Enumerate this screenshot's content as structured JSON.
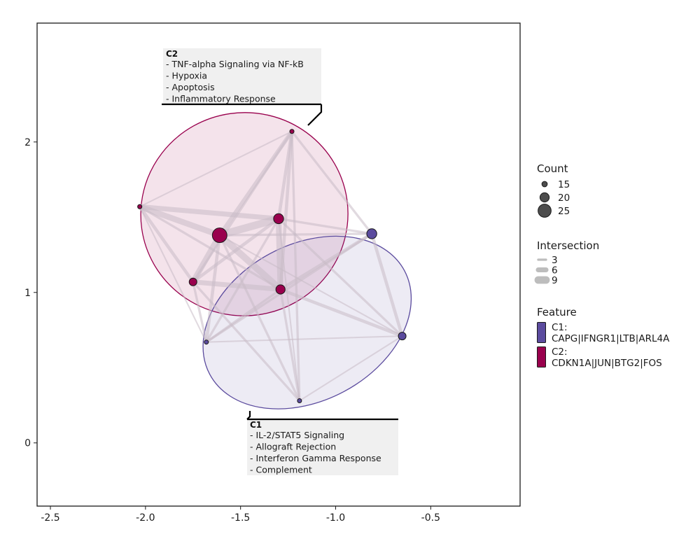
{
  "chart_data": {
    "type": "network",
    "x_axis": {
      "range": [
        -2.57,
        -0.03
      ],
      "ticks": [
        -2.5,
        -2.0,
        -1.5,
        -1.0,
        -0.5
      ],
      "tick_labels": [
        "-2.5",
        "-2.0",
        "-1.5",
        "-1.0",
        "-0.5"
      ]
    },
    "y_axis": {
      "range": [
        -0.42,
        2.79
      ],
      "ticks": [
        0,
        1,
        2
      ],
      "tick_labels": [
        "0",
        "1",
        "2"
      ]
    },
    "colors": {
      "C1": "#5b4b9e",
      "C2": "#99004d",
      "edge": "#c8bcc6",
      "ann_bg": "#f0f0f0"
    },
    "nodes": [
      {
        "id": "a",
        "x": -1.23,
        "y": 2.07,
        "size": 12,
        "cluster": "C2"
      },
      {
        "id": "b",
        "x": -2.03,
        "y": 1.57,
        "size": 13,
        "cluster": "C2"
      },
      {
        "id": "c",
        "x": -1.3,
        "y": 1.49,
        "size": 21,
        "cluster": "C2"
      },
      {
        "id": "d",
        "x": -1.61,
        "y": 1.38,
        "size": 27,
        "cluster": "C2"
      },
      {
        "id": "e",
        "x": -1.75,
        "y": 1.07,
        "size": 18,
        "cluster": "C2"
      },
      {
        "id": "f",
        "x": -1.29,
        "y": 1.02,
        "size": 20,
        "cluster": "C2"
      },
      {
        "id": "g",
        "x": -0.81,
        "y": 1.39,
        "size": 21,
        "cluster": "C1"
      },
      {
        "id": "h",
        "x": -0.65,
        "y": 0.71,
        "size": 18,
        "cluster": "C1"
      },
      {
        "id": "i",
        "x": -1.68,
        "y": 0.67,
        "size": 12,
        "cluster": "C1"
      },
      {
        "id": "j",
        "x": -1.19,
        "y": 0.28,
        "size": 12,
        "cluster": "C1"
      }
    ],
    "edges": [
      {
        "s": "d",
        "t": "c",
        "w": 9
      },
      {
        "s": "d",
        "t": "f",
        "w": 8
      },
      {
        "s": "d",
        "t": "e",
        "w": 7
      },
      {
        "s": "b",
        "t": "d",
        "w": 7
      },
      {
        "s": "b",
        "t": "c",
        "w": 6
      },
      {
        "s": "c",
        "t": "f",
        "w": 7
      },
      {
        "s": "e",
        "t": "f",
        "w": 6
      },
      {
        "s": "a",
        "t": "d",
        "w": 5
      },
      {
        "s": "a",
        "t": "c",
        "w": 4
      },
      {
        "s": "a",
        "t": "f",
        "w": 4
      },
      {
        "s": "a",
        "t": "e",
        "w": 3
      },
      {
        "s": "b",
        "t": "e",
        "w": 4
      },
      {
        "s": "b",
        "t": "f",
        "w": 3
      },
      {
        "s": "e",
        "t": "c",
        "w": 4
      },
      {
        "s": "a",
        "t": "g",
        "w": 3
      },
      {
        "s": "b",
        "t": "a",
        "w": 2
      },
      {
        "s": "d",
        "t": "g",
        "w": 3
      },
      {
        "s": "c",
        "t": "g",
        "w": 3
      },
      {
        "s": "f",
        "t": "g",
        "w": 4
      },
      {
        "s": "f",
        "t": "h",
        "w": 4
      },
      {
        "s": "c",
        "t": "h",
        "w": 3
      },
      {
        "s": "d",
        "t": "h",
        "w": 2
      },
      {
        "s": "g",
        "t": "h",
        "w": 4
      },
      {
        "s": "g",
        "t": "i",
        "w": 3
      },
      {
        "s": "i",
        "t": "h",
        "w": 2
      },
      {
        "s": "i",
        "t": "d",
        "w": 4
      },
      {
        "s": "i",
        "t": "c",
        "w": 3
      },
      {
        "s": "i",
        "t": "f",
        "w": 3
      },
      {
        "s": "i",
        "t": "b",
        "w": 2
      },
      {
        "s": "j",
        "t": "a",
        "w": 3
      },
      {
        "s": "j",
        "t": "f",
        "w": 3
      },
      {
        "s": "j",
        "t": "d",
        "w": 3
      },
      {
        "s": "j",
        "t": "e",
        "w": 3
      },
      {
        "s": "j",
        "t": "c",
        "w": 2
      },
      {
        "s": "j",
        "t": "h",
        "w": 2
      },
      {
        "s": "e",
        "t": "i",
        "w": 3
      }
    ],
    "clusters": [
      {
        "id": "C2",
        "cx": -1.48,
        "cy": 1.52,
        "rx": 0.545,
        "ry": 0.675,
        "rotate": -8
      },
      {
        "id": "C1",
        "cx": -1.15,
        "cy": 0.8,
        "rx": 0.58,
        "ry": 0.52,
        "rotate": -28
      }
    ],
    "annotations": [
      {
        "id": "C2",
        "title": "C2",
        "lines": [
          "- TNF-alpha Signaling via NF-kB",
          "- Hypoxia",
          "- Apoptosis",
          "- Inflammatory Response"
        ]
      },
      {
        "id": "C1",
        "title": "C1",
        "lines": [
          "- IL-2/STAT5 Signaling",
          "- Allograft Rejection",
          "- Interferon Gamma Response",
          "- Complement"
        ]
      }
    ],
    "legend": {
      "count": {
        "title": "Count",
        "items": [
          {
            "label": "15",
            "value": 15
          },
          {
            "label": "20",
            "value": 20
          },
          {
            "label": "25",
            "value": 25
          }
        ]
      },
      "intersection": {
        "title": "Intersection",
        "items": [
          {
            "label": "3",
            "value": 3
          },
          {
            "label": "6",
            "value": 6
          },
          {
            "label": "9",
            "value": 9
          }
        ]
      },
      "feature": {
        "title": "Feature",
        "items": [
          {
            "id": "C1",
            "lines": [
              "C1:",
              "CAPG|IFNGR1|LTB|ARL4A"
            ]
          },
          {
            "id": "C2",
            "lines": [
              "C2:",
              "CDKN1A|JUN|BTG2|FOS"
            ]
          }
        ]
      }
    }
  }
}
